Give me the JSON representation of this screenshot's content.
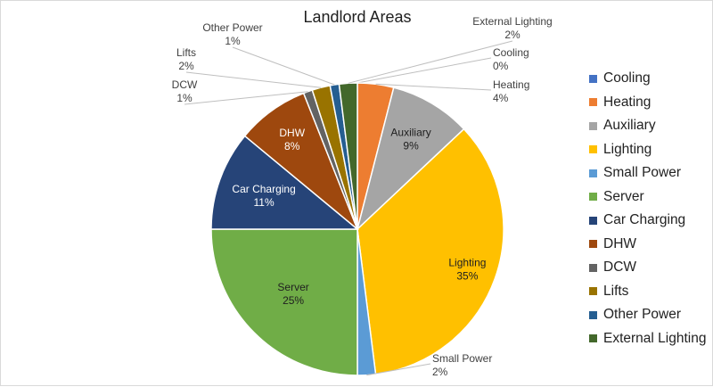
{
  "chart_data": {
    "type": "pie",
    "title": "Landlord Areas",
    "legend_position": "right",
    "categories": [
      "Cooling",
      "Heating",
      "Auxiliary",
      "Lighting",
      "Small Power",
      "Server",
      "Car Charging",
      "DHW",
      "DCW",
      "Lifts",
      "Other Power",
      "External Lighting"
    ],
    "values": [
      0,
      4,
      9,
      35,
      2,
      25,
      11,
      8,
      1,
      2,
      1,
      2
    ],
    "value_labels": [
      "0%",
      "4%",
      "9%",
      "35%",
      "2%",
      "25%",
      "11%",
      "8%",
      "1%",
      "2%",
      "1%",
      "2%"
    ],
    "colors": [
      "#4472C4",
      "#ED7D31",
      "#A5A5A5",
      "#FFC000",
      "#5B9BD5",
      "#70AD47",
      "#264478",
      "#9E480E",
      "#636363",
      "#997300",
      "#255E91",
      "#43682B"
    ]
  }
}
